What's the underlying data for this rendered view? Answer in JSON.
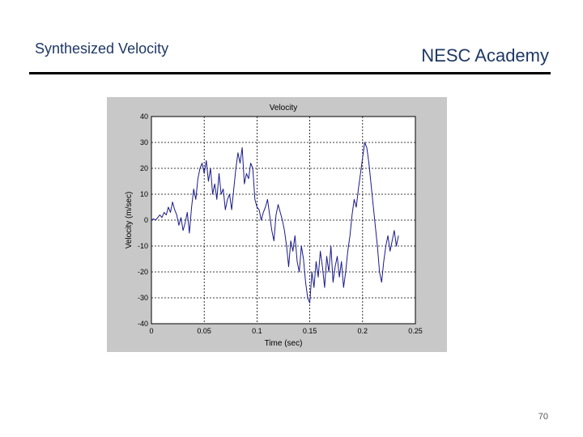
{
  "slide": {
    "title": "Synthesized Velocity",
    "brand": "NESC Academy",
    "page_number": "70"
  },
  "colors": {
    "header_text": "#1f3864",
    "rule": "#000000",
    "figure_background": "#c8c8c8",
    "axes_background": "#ffffff",
    "series_line": "#1a1a8c"
  },
  "chart_data": {
    "type": "line",
    "title": "Velocity",
    "xlabel": "Time (sec)",
    "ylabel": "Velocity (m/sec)",
    "xlim": [
      0,
      0.25
    ],
    "ylim": [
      -40,
      40
    ],
    "grid": true,
    "xticks": [
      0,
      0.05,
      0.1,
      0.15,
      0.2,
      0.25
    ],
    "yticks": [
      -40,
      -30,
      -20,
      -10,
      0,
      10,
      20,
      30,
      40
    ],
    "xtick_labels": [
      "0",
      "0.05",
      "0.1",
      "0.15",
      "0.2",
      "0.25"
    ],
    "ytick_labels": [
      "-40",
      "-30",
      "-20",
      "-10",
      "0",
      "10",
      "20",
      "30",
      "40"
    ],
    "series": [
      {
        "x": [
          0,
          0.002,
          0.004,
          0.006,
          0.008,
          0.01,
          0.012,
          0.014,
          0.016,
          0.018,
          0.02,
          0.022,
          0.024,
          0.026,
          0.028,
          0.03,
          0.032,
          0.034,
          0.036,
          0.038,
          0.04,
          0.042,
          0.044,
          0.046,
          0.048,
          0.05,
          0.052,
          0.054,
          0.056,
          0.058,
          0.06,
          0.062,
          0.064,
          0.066,
          0.068,
          0.07,
          0.072,
          0.074,
          0.076,
          0.078,
          0.08,
          0.082,
          0.084,
          0.086,
          0.088,
          0.09,
          0.092,
          0.094,
          0.096,
          0.098,
          0.1,
          0.102,
          0.104,
          0.106,
          0.108,
          0.11,
          0.112,
          0.114,
          0.116,
          0.118,
          0.12,
          0.122,
          0.124,
          0.126,
          0.128,
          0.13,
          0.132,
          0.134,
          0.136,
          0.138,
          0.14,
          0.142,
          0.144,
          0.146,
          0.148,
          0.15,
          0.152,
          0.154,
          0.156,
          0.158,
          0.16,
          0.162,
          0.164,
          0.166,
          0.168,
          0.17,
          0.172,
          0.174,
          0.176,
          0.178,
          0.18,
          0.182,
          0.184,
          0.186,
          0.188,
          0.19,
          0.192,
          0.194,
          0.196,
          0.198,
          0.2,
          0.202,
          0.204,
          0.206,
          0.208,
          0.21,
          0.212,
          0.214,
          0.216,
          0.218,
          0.22,
          0.222,
          0.224,
          0.226,
          0.228,
          0.23,
          0.232,
          0.234
        ],
        "y": [
          0,
          0.5,
          0,
          1,
          2,
          1,
          3,
          2,
          5,
          3,
          7,
          4,
          2,
          -2,
          1,
          -4,
          -1,
          3,
          -5,
          5,
          12,
          8,
          16,
          20,
          22,
          18,
          23,
          15,
          20,
          10,
          14,
          8,
          18,
          10,
          12,
          4,
          8,
          10,
          4,
          12,
          20,
          26,
          22,
          28,
          14,
          18,
          16,
          22,
          20,
          8,
          5,
          4,
          0,
          3,
          5,
          8,
          2,
          -4,
          -8,
          2,
          6,
          3,
          0,
          -4,
          -10,
          -18,
          -8,
          -12,
          -6,
          -16,
          -20,
          -10,
          -15,
          -24,
          -30,
          -32,
          -20,
          -26,
          -16,
          -22,
          -12,
          -18,
          -26,
          -14,
          -20,
          -10,
          -24,
          -18,
          -14,
          -22,
          -16,
          -26,
          -20,
          -12,
          -6,
          2,
          8,
          5,
          12,
          18,
          24,
          30,
          28,
          22,
          14,
          6,
          -2,
          -10,
          -20,
          -24,
          -16,
          -10,
          -6,
          -12,
          -8,
          -4,
          -10,
          -6
        ],
        "color": "#1a1a8c"
      }
    ]
  }
}
